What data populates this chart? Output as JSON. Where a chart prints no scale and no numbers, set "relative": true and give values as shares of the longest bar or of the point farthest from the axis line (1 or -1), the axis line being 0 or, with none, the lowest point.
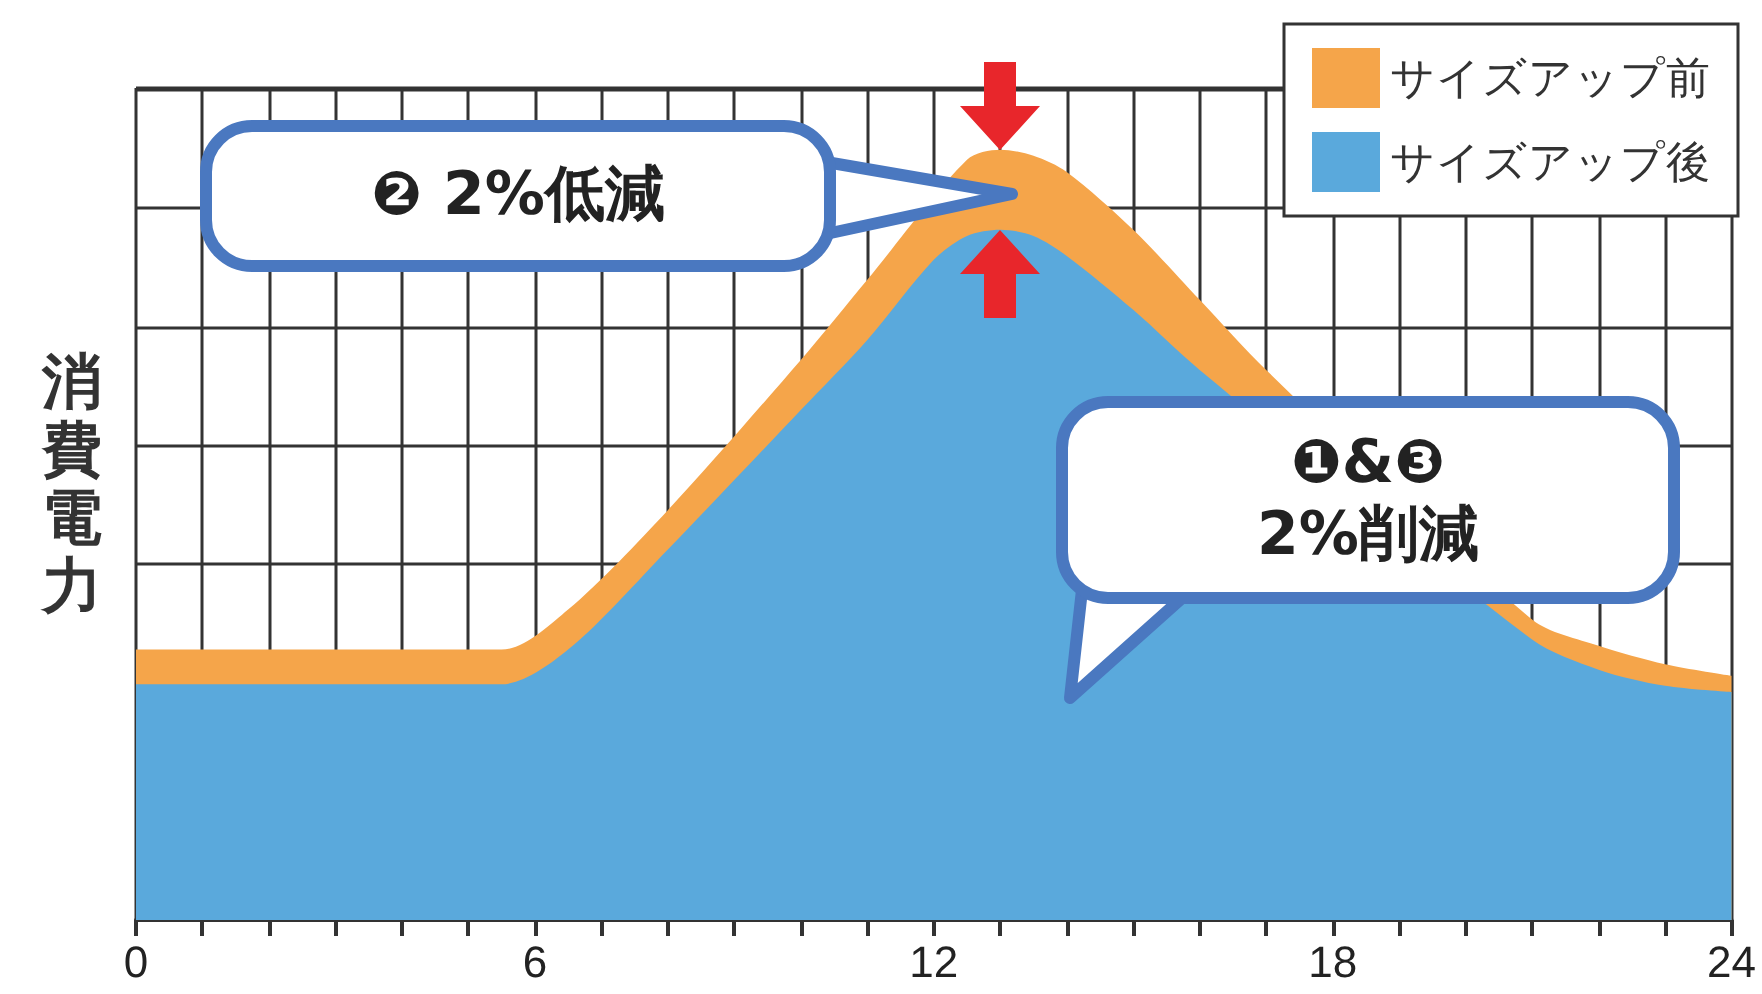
{
  "chart_data": {
    "type": "area",
    "relative": true,
    "ylabel": "消費電力",
    "x": [
      0,
      5.5,
      6.5,
      8,
      10,
      11,
      12,
      12.5,
      13,
      13.5,
      14,
      15,
      16,
      17,
      18,
      19,
      20,
      21,
      22,
      23,
      24
    ],
    "xlim": [
      0,
      24
    ],
    "xticks": [
      0,
      {
        "value": 1,
        "label": null
      },
      {
        "value": 2,
        "label": null
      },
      {
        "value": 3,
        "label": null
      },
      {
        "value": 4,
        "label": null
      },
      {
        "value": 5,
        "label": null
      },
      6,
      {
        "value": 7,
        "label": null
      },
      {
        "value": 8,
        "label": null
      },
      {
        "value": 9,
        "label": null
      },
      {
        "value": 10,
        "label": null
      },
      {
        "value": 11,
        "label": null
      },
      12,
      {
        "value": 13,
        "label": null
      },
      {
        "value": 14,
        "label": null
      },
      {
        "value": 15,
        "label": null
      },
      {
        "value": 16,
        "label": null
      },
      {
        "value": 17,
        "label": null
      },
      18,
      {
        "value": 19,
        "label": null
      },
      {
        "value": 20,
        "label": null
      },
      {
        "value": 21,
        "label": null
      },
      {
        "value": 22,
        "label": null
      },
      {
        "value": 23,
        "label": null
      },
      24
    ],
    "series": [
      {
        "name": "サイズアップ前",
        "color": "#f5a54a",
        "values": [
          0.351,
          0.351,
          0.403,
          0.532,
          0.727,
          0.831,
          null,
          0.987,
          1,
          0.992,
          0.971,
          0.896,
          0.805,
          0.714,
          null,
          null,
          null,
          0.39,
          0.356,
          0.332,
          0.317
        ]
      },
      {
        "name": "サイズアップ後",
        "color": "#5aa9dc",
        "values": [
          0.306,
          0.306,
          0.351,
          0.481,
          0.662,
          0.753,
          0.857,
          0.888,
          0.896,
          0.888,
          0.862,
          0.792,
          0.714,
          null,
          null,
          null,
          null,
          0.364,
          0.325,
          0.304,
          0.296
        ]
      }
    ],
    "annotations": [
      "❷ 2%低減",
      "❶&❸\n2%削減"
    ],
    "grid": true,
    "legend": "top right",
    "marker": "none"
  }
}
